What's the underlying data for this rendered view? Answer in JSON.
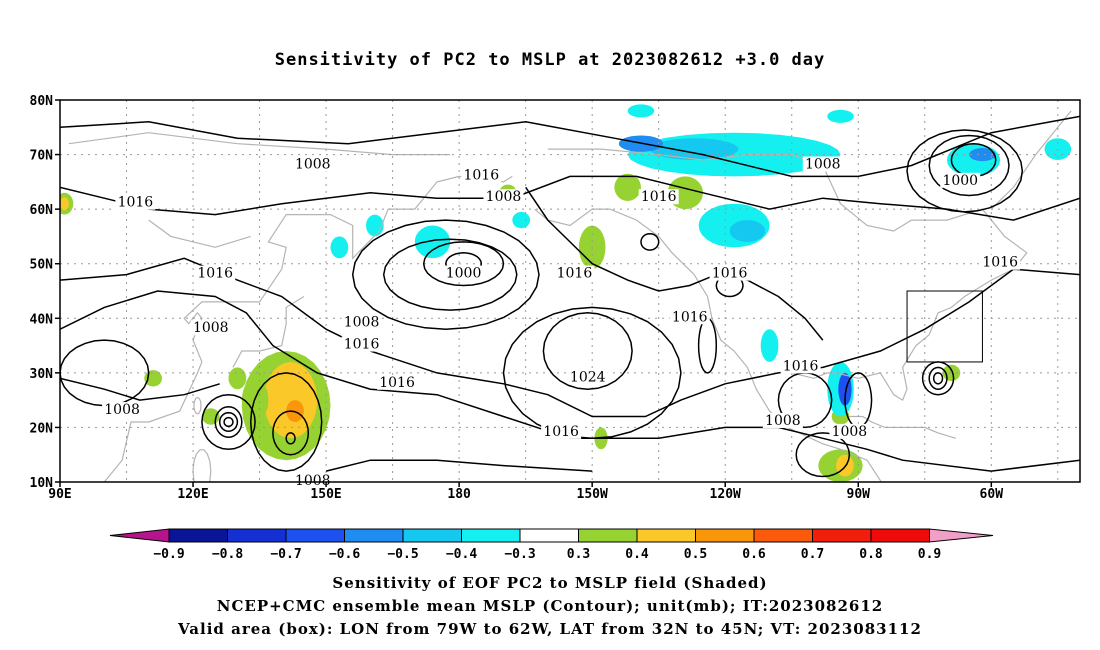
{
  "title": "Sensitivity of PC2 to MSLP at 2023082612 +3.0 day",
  "lat_labels": [
    "80N",
    "70N",
    "60N",
    "50N",
    "40N",
    "30N",
    "20N",
    "10N"
  ],
  "lon_labels": [
    "90E",
    "120E",
    "150E",
    "180",
    "150W",
    "120W",
    "90W",
    "60W"
  ],
  "contour_labels": [
    {
      "text": "1008",
      "lon": 147,
      "lat": 68
    },
    {
      "text": "1016",
      "lon": 107,
      "lat": 61
    },
    {
      "text": "1016",
      "lon": 185,
      "lat": 66
    },
    {
      "text": "1008",
      "lon": 190,
      "lat": 62
    },
    {
      "text": "1016",
      "lon": 225,
      "lat": 62
    },
    {
      "text": "1008",
      "lon": 262,
      "lat": 68
    },
    {
      "text": "1000",
      "lon": 293,
      "lat": 65
    },
    {
      "text": "1016",
      "lon": 125,
      "lat": 48
    },
    {
      "text": "1000",
      "lon": 181,
      "lat": 48
    },
    {
      "text": "1008",
      "lon": 158,
      "lat": 39
    },
    {
      "text": "1016",
      "lon": 158,
      "lat": 35
    },
    {
      "text": "1008",
      "lon": 124,
      "lat": 38
    },
    {
      "text": "1016",
      "lon": 166,
      "lat": 28
    },
    {
      "text": "1016",
      "lon": 206,
      "lat": 48
    },
    {
      "text": "1016",
      "lon": 241,
      "lat": 48
    },
    {
      "text": "1016",
      "lon": 232,
      "lat": 40
    },
    {
      "text": "1016",
      "lon": 257,
      "lat": 31
    },
    {
      "text": "1024",
      "lon": 209,
      "lat": 29
    },
    {
      "text": "1016",
      "lon": 203,
      "lat": 19
    },
    {
      "text": "1008",
      "lon": 104,
      "lat": 23
    },
    {
      "text": "1008",
      "lon": 253,
      "lat": 21
    },
    {
      "text": "1008",
      "lon": 268,
      "lat": 19
    },
    {
      "text": "1016",
      "lon": 302,
      "lat": 50
    },
    {
      "text": "1008",
      "lon": 147,
      "lat": 10
    }
  ],
  "valid_box": {
    "lon_from": 281,
    "lon_to": 298,
    "lat_from": 32,
    "lat_to": 45
  },
  "colorbar": {
    "labels": [
      "−0.9",
      "−0.8",
      "−0.7",
      "−0.6",
      "−0.5",
      "−0.4",
      "−0.3",
      "0.3",
      "0.4",
      "0.5",
      "0.6",
      "0.7",
      "0.8",
      "0.9"
    ],
    "colors": [
      "#b4148c",
      "#0a1496",
      "#1430d2",
      "#1e50f0",
      "#1e8cf0",
      "#14c8f0",
      "#14f0f0",
      "#ffffff",
      "#96d232",
      "#fac828",
      "#fa960a",
      "#fa5a0a",
      "#f01e0a",
      "#f00a0a",
      "#f0a0c8"
    ]
  },
  "footer": [
    "Sensitivity of EOF PC2 to MSLP field (Shaded)",
    "NCEP+CMC ensemble mean MSLP (Contour); unit(mb); IT:2023082612",
    "Valid area (box): LON from 79W to 62W, LAT from 32N to 45N; VT: 2023083112"
  ]
}
